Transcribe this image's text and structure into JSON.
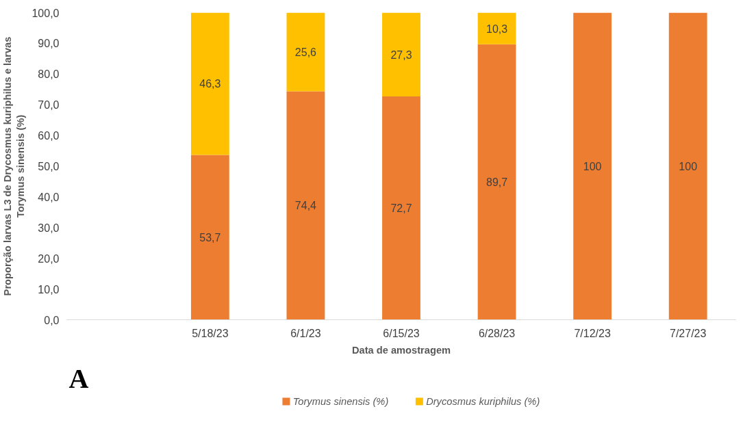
{
  "chart_data": {
    "type": "bar",
    "stacked": true,
    "categories": [
      null,
      "5/18/23",
      "6/1/23",
      "6/15/23",
      "6/28/23",
      "7/12/23",
      "7/27/23"
    ],
    "series": [
      {
        "name": "Torymus sinensis (%)",
        "color": "#ed7d31",
        "values": [
          null,
          53.7,
          74.4,
          72.7,
          89.7,
          100,
          100
        ],
        "value_labels": [
          null,
          "53,7",
          "74,4",
          "72,7",
          "89,7",
          "100",
          "100"
        ]
      },
      {
        "name": "Drycosmus kuriphilus (%)",
        "color": "#ffc000",
        "values": [
          null,
          46.3,
          25.6,
          27.3,
          10.3,
          null,
          null
        ],
        "value_labels": [
          null,
          "46,3",
          "25,6",
          "27,3",
          "10,3",
          null,
          null
        ]
      }
    ],
    "xlabel": "Data de amostragem",
    "ylabel": "Proporção larvas L3 de Drycosmus kuriphilus e larvas\nTorymus sinensis (%)",
    "ylim": [
      0,
      100
    ],
    "yticks": [
      {
        "value": 0,
        "label": "0,0"
      },
      {
        "value": 10,
        "label": "10,0"
      },
      {
        "value": 20,
        "label": "20,0"
      },
      {
        "value": 30,
        "label": "30,0"
      },
      {
        "value": 40,
        "label": "40,0"
      },
      {
        "value": 50,
        "label": "50,0"
      },
      {
        "value": 60,
        "label": "60,0"
      },
      {
        "value": 70,
        "label": "70,0"
      },
      {
        "value": 80,
        "label": "80,0"
      },
      {
        "value": 90,
        "label": "90,0"
      },
      {
        "value": 100,
        "label": "100,0"
      }
    ],
    "grid": false,
    "legend": "bottom",
    "annotations": [
      "A"
    ]
  }
}
